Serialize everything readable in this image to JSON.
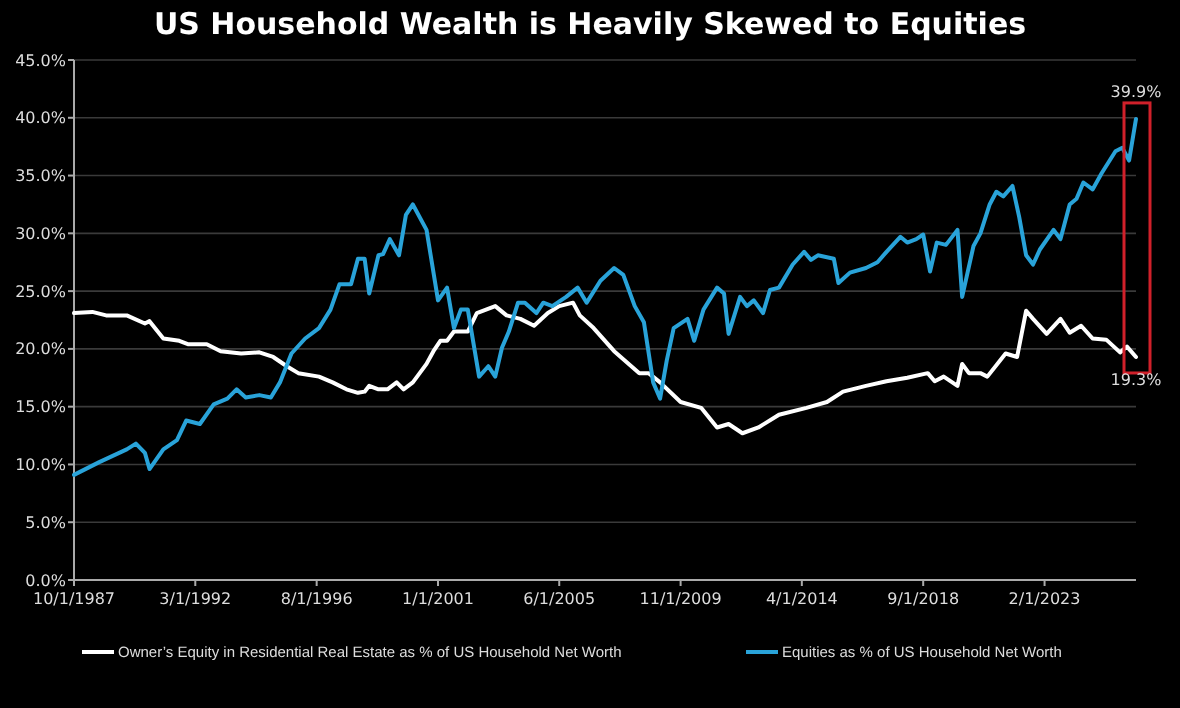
{
  "chart_data": {
    "type": "line",
    "title": "US Household Wealth is Heavily Skewed to Equities",
    "xlim": [
      "1987-10-01",
      "2026-06-01"
    ],
    "ylim": [
      0,
      45
    ],
    "xticks": [
      {
        "value": "1987-10-01",
        "label": "10/1/1987"
      },
      {
        "value": "1992-03-01",
        "label": "3/1/1992"
      },
      {
        "value": "1996-08-01",
        "label": "8/1/1996"
      },
      {
        "value": "2001-01-01",
        "label": "1/1/2001"
      },
      {
        "value": "2005-06-01",
        "label": "6/1/2005"
      },
      {
        "value": "2009-11-01",
        "label": "11/1/2009"
      },
      {
        "value": "2014-04-01",
        "label": "4/1/2014"
      },
      {
        "value": "2018-09-01",
        "label": "9/1/2018"
      },
      {
        "value": "2023-02-01",
        "label": "2/1/2023"
      }
    ],
    "yticks": [
      {
        "value": 0,
        "label": "0.0%"
      },
      {
        "value": 5,
        "label": "5.0%"
      },
      {
        "value": 10,
        "label": "10.0%"
      },
      {
        "value": 15,
        "label": "15.0%"
      },
      {
        "value": 20,
        "label": "20.0%"
      },
      {
        "value": 25,
        "label": "25.0%"
      },
      {
        "value": 30,
        "label": "30.0%"
      },
      {
        "value": 35,
        "label": "35.0%"
      },
      {
        "value": 40,
        "label": "40.0%"
      },
      {
        "value": 45,
        "label": "45.0%"
      }
    ],
    "grid": "y",
    "legend": "bottom",
    "marker": "none",
    "line_style": "solid",
    "series": [
      {
        "name": "Owner’s Equity in Residential Real Estate as % of US Household Net Worth",
        "color": "#ffffff",
        "x": [
          "1987-10",
          "1988-06",
          "1988-12",
          "1989-09",
          "1990-05",
          "1990-07",
          "1991-01",
          "1991-08",
          "1991-12",
          "1992-08",
          "1993-02",
          "1993-11",
          "1994-07",
          "1995-01",
          "1995-07",
          "1995-12",
          "1996-09",
          "1997-03",
          "1997-09",
          "1998-02",
          "1998-05",
          "1998-07",
          "1998-11",
          "1999-03",
          "1999-07",
          "1999-10",
          "2000-02",
          "2000-08",
          "2000-11",
          "2001-02",
          "2001-05",
          "2001-08",
          "2002-02",
          "2002-06",
          "2003-02",
          "2003-07",
          "2004-01",
          "2004-07",
          "2005-01",
          "2005-06",
          "2005-12",
          "2006-03",
          "2006-09",
          "2007-06",
          "2008-05",
          "2008-09",
          "2009-02",
          "2009-11",
          "2010-08",
          "2011-03",
          "2011-08",
          "2012-02",
          "2012-09",
          "2013-06",
          "2014-06",
          "2015-03",
          "2015-10",
          "2016-08",
          "2017-05",
          "2018-02",
          "2018-11",
          "2019-02",
          "2019-06",
          "2019-12",
          "2020-02",
          "2020-05",
          "2020-10",
          "2021-01",
          "2021-09",
          "2022-02",
          "2022-06",
          "2022-09",
          "2023-03",
          "2023-09",
          "2024-01",
          "2024-06",
          "2024-11",
          "2025-05",
          "2025-11",
          "2026-02",
          "2026-06"
        ],
        "values": [
          23.1,
          23.2,
          22.9,
          22.9,
          22.2,
          22.4,
          20.9,
          20.7,
          20.4,
          20.4,
          19.8,
          19.6,
          19.7,
          19.3,
          18.5,
          17.9,
          17.6,
          17.1,
          16.5,
          16.2,
          16.3,
          16.8,
          16.5,
          16.5,
          17.1,
          16.5,
          17.1,
          18.7,
          19.8,
          20.7,
          20.7,
          21.5,
          21.5,
          23.1,
          23.7,
          22.9,
          22.6,
          22.0,
          23.1,
          23.7,
          24.0,
          22.9,
          21.8,
          19.8,
          17.9,
          17.9,
          17.1,
          15.4,
          14.9,
          13.2,
          13.5,
          12.7,
          13.2,
          14.3,
          14.9,
          15.4,
          16.3,
          16.8,
          17.2,
          17.5,
          17.9,
          17.2,
          17.6,
          16.8,
          18.7,
          17.9,
          17.9,
          17.6,
          19.6,
          19.3,
          23.3,
          22.6,
          21.3,
          22.6,
          21.4,
          22.0,
          20.9,
          20.8,
          19.7,
          20.2,
          19.3
        ]
      },
      {
        "name": "Equities as % of US Household Net Worth",
        "color": "#29a3d9",
        "x": [
          "1987-10",
          "1988-09",
          "1989-09",
          "1990-01",
          "1990-05",
          "1990-07",
          "1991-01",
          "1991-07",
          "1991-11",
          "1992-05",
          "1992-11",
          "1993-05",
          "1993-09",
          "1994-01",
          "1994-07",
          "1994-12",
          "1995-04",
          "1995-09",
          "1996-03",
          "1996-09",
          "1997-02",
          "1997-06",
          "1997-11",
          "1998-02",
          "1998-05",
          "1998-07",
          "1998-11",
          "1999-01",
          "1999-04",
          "1999-08",
          "1999-11",
          "2000-02",
          "2000-08",
          "2001-01",
          "2001-05",
          "2001-08",
          "2001-11",
          "2002-02",
          "2002-07",
          "2002-11",
          "2003-02",
          "2003-05",
          "2003-08",
          "2003-12",
          "2004-03",
          "2004-08",
          "2004-11",
          "2005-03",
          "2005-09",
          "2006-02",
          "2006-06",
          "2006-12",
          "2007-06",
          "2007-10",
          "2008-03",
          "2008-07",
          "2008-11",
          "2009-02",
          "2009-05",
          "2009-08",
          "2010-02",
          "2010-05",
          "2010-09",
          "2011-03",
          "2011-06",
          "2011-08",
          "2012-01",
          "2012-04",
          "2012-07",
          "2012-11",
          "2013-02",
          "2013-06",
          "2013-12",
          "2014-05",
          "2014-08",
          "2014-11",
          "2015-06",
          "2015-08",
          "2016-01",
          "2016-08",
          "2017-01",
          "2017-05",
          "2017-11",
          "2018-02",
          "2018-06",
          "2018-09",
          "2018-12",
          "2019-03",
          "2019-07",
          "2019-12",
          "2020-02",
          "2020-07",
          "2020-10",
          "2021-02",
          "2021-05",
          "2021-08",
          "2021-12",
          "2022-03",
          "2022-06",
          "2022-09",
          "2022-12",
          "2023-06",
          "2023-09",
          "2024-01",
          "2024-04",
          "2024-07",
          "2024-11",
          "2025-03",
          "2025-09",
          "2025-12",
          "2026-03",
          "2026-06"
        ],
        "values": [
          9.1,
          10.2,
          11.3,
          11.8,
          11.0,
          9.6,
          11.3,
          12.1,
          13.8,
          13.5,
          15.2,
          15.7,
          16.5,
          15.8,
          16.0,
          15.8,
          17.1,
          19.6,
          20.9,
          21.8,
          23.4,
          25.6,
          25.6,
          27.8,
          27.8,
          24.8,
          28.1,
          28.2,
          29.5,
          28.1,
          31.6,
          32.5,
          30.3,
          24.2,
          25.3,
          21.8,
          23.4,
          23.4,
          17.6,
          18.5,
          17.6,
          20.1,
          21.5,
          24.0,
          24.0,
          23.1,
          24.0,
          23.7,
          24.5,
          25.3,
          24.0,
          25.9,
          27.0,
          26.4,
          23.7,
          22.3,
          17.1,
          15.7,
          19.0,
          21.8,
          22.6,
          20.7,
          23.4,
          25.3,
          24.8,
          21.3,
          24.5,
          23.7,
          24.2,
          23.1,
          25.1,
          25.3,
          27.3,
          28.4,
          27.7,
          28.1,
          27.8,
          25.7,
          26.6,
          27.0,
          27.5,
          28.4,
          29.7,
          29.2,
          29.5,
          29.9,
          26.7,
          29.2,
          29.0,
          30.3,
          24.5,
          28.9,
          30.0,
          32.5,
          33.6,
          33.2,
          34.1,
          31.4,
          28.1,
          27.3,
          28.6,
          30.3,
          29.5,
          32.5,
          33.0,
          34.4,
          33.8,
          35.2,
          37.1,
          37.4,
          36.3,
          39.9
        ]
      }
    ],
    "annotations": [
      {
        "text": "39.9%",
        "x": "2026-06",
        "y": 39.9
      },
      {
        "text": "19.3%",
        "x": "2026-06",
        "y": 19.3
      }
    ]
  }
}
